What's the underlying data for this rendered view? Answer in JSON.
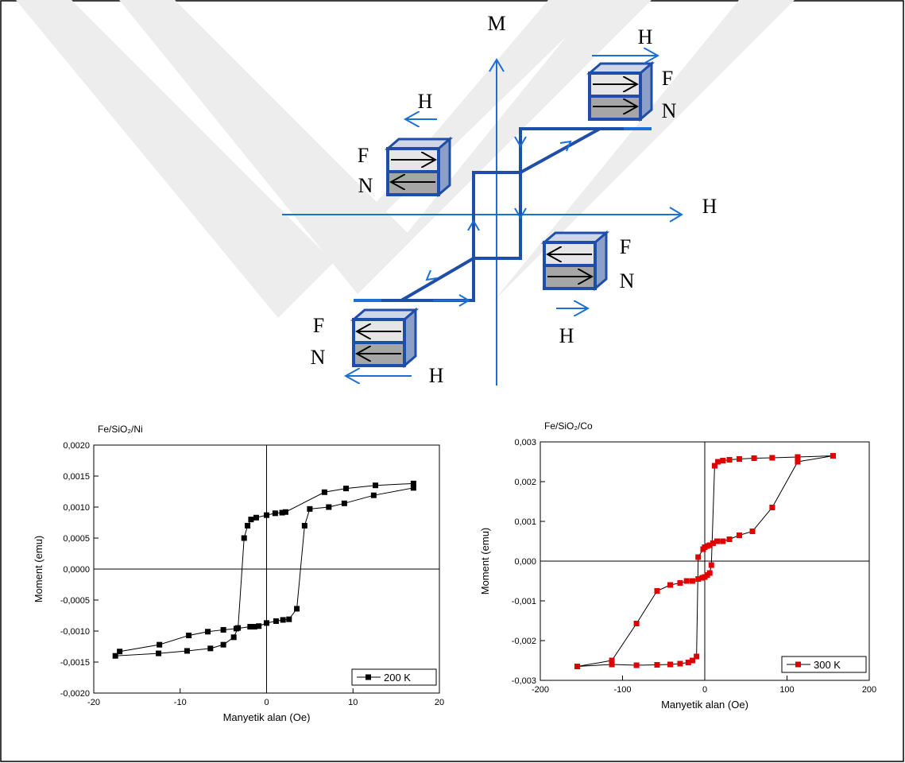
{
  "diagram": {
    "axis_vertical": "M",
    "axis_horizontal": "H",
    "states": [
      {
        "field": "H",
        "top_layer": "F",
        "bottom_layer": "N"
      },
      {
        "field": "H",
        "top_layer": "F",
        "bottom_layer": "N"
      },
      {
        "field": "H",
        "top_layer": "F",
        "bottom_layer": "N"
      },
      {
        "field": "H",
        "top_layer": "F",
        "bottom_layer": "N"
      }
    ]
  },
  "chart_data": [
    {
      "type": "line",
      "title": "Fe/SiO₂/Ni",
      "x_label": "Manyetik alan (Oe)",
      "y_label": "Moment (emu)",
      "xlim": [
        -20,
        20
      ],
      "xticks": [
        -20,
        -10,
        0,
        10,
        20
      ],
      "ylim": [
        -0.002,
        0.002
      ],
      "yticks": [
        {
          "value": -0.002,
          "label": "-0,0020"
        },
        {
          "value": -0.0015,
          "label": "-0,0015"
        },
        {
          "value": -0.001,
          "label": "-0,0010"
        },
        {
          "value": -0.0005,
          "label": "-0,0005"
        },
        {
          "value": 0,
          "label": "0,0000"
        },
        {
          "value": 0.0005,
          "label": "0,0005"
        },
        {
          "value": 0.001,
          "label": "0,0010"
        },
        {
          "value": 0.0015,
          "label": "0,0015"
        },
        {
          "value": 0.002,
          "label": "0,0020"
        }
      ],
      "zero_lines": true,
      "legend": "lower right",
      "x": [
        17.0,
        12.6,
        9.2,
        6.7,
        2.2,
        1.8,
        1.0,
        0,
        -1.2,
        -1.8,
        -2.2,
        -2.6,
        -3.3,
        -3.8,
        -5.0,
        -6.5,
        -9.2,
        -12.5,
        -17.5,
        -17.0,
        -12.4,
        -9.0,
        -6.8,
        -5.0,
        -3.5,
        -1.9,
        -1.4,
        -0.9,
        0,
        1.1,
        1.9,
        2.6,
        3.5,
        4.4,
        5.0,
        7.2,
        9.0,
        12.4,
        17.0
      ],
      "series": [
        {
          "name": "200 K",
          "color": "#000000",
          "values": [
            0.00138,
            0.00135,
            0.0013,
            0.00124,
            0.00092,
            0.00091,
            0.0009,
            0.00087,
            0.00083,
            0.0008,
            0.0007,
            0.0005,
            -0.00095,
            -0.0011,
            -0.00122,
            -0.00128,
            -0.00132,
            -0.00136,
            -0.0014,
            -0.00133,
            -0.00122,
            -0.00107,
            -0.00101,
            -0.00098,
            -0.00096,
            -0.00093,
            -0.00093,
            -0.00092,
            -0.00087,
            -0.00084,
            -0.00082,
            -0.00081,
            -0.00064,
            0.0007,
            0.00097,
            0.001,
            0.00106,
            0.00119,
            0.00131
          ]
        }
      ]
    },
    {
      "type": "line",
      "title": "Fe/SiO₂/Co",
      "x_label": "Manyetik alan (Oe)",
      "y_label": "Moment (emu)",
      "xlim": [
        -200,
        200
      ],
      "xticks": [
        -200,
        -100,
        0,
        100,
        200
      ],
      "ylim": [
        -0.003,
        0.003
      ],
      "yticks": [
        {
          "value": -0.003,
          "label": "-0,003"
        },
        {
          "value": -0.002,
          "label": "-0,002"
        },
        {
          "value": -0.001,
          "label": "-0,001"
        },
        {
          "value": 0,
          "label": "0,000"
        },
        {
          "value": 0.001,
          "label": "0,001"
        },
        {
          "value": 0.002,
          "label": "0,002"
        },
        {
          "value": 0.003,
          "label": "0,003"
        }
      ],
      "zero_lines": true,
      "legend": "lower right",
      "x": [
        156,
        113,
        82,
        60,
        42,
        30,
        22,
        16,
        12,
        8,
        6,
        3,
        0,
        -3,
        -8,
        -15,
        -22,
        -30,
        -42,
        -58,
        -83,
        -113,
        -155,
        -155,
        -113,
        -83,
        -58,
        -42,
        -30,
        -20,
        -15,
        -10,
        -8,
        -2,
        0,
        3,
        6,
        10,
        15,
        22,
        30,
        42,
        58,
        82,
        113,
        156
      ],
      "series": [
        {
          "name": "300 K",
          "color": "#e00000",
          "values": [
            0.00265,
            0.00262,
            0.0026,
            0.00259,
            0.00257,
            0.00255,
            0.00253,
            0.0025,
            0.0024,
            -0.0001,
            -0.0003,
            -0.00035,
            -0.0004,
            -0.00042,
            -0.00045,
            -0.0005,
            -0.0005,
            -0.00055,
            -0.0006,
            -0.00075,
            -0.00157,
            -0.0025,
            -0.00265,
            -0.00265,
            -0.0026,
            -0.00262,
            -0.00261,
            -0.0026,
            -0.00258,
            -0.00255,
            -0.0025,
            -0.0024,
            0.0001,
            0.0003,
            0.00035,
            0.00038,
            0.0004,
            0.00045,
            0.0005,
            0.0005,
            0.00055,
            0.00065,
            0.00075,
            0.00135,
            0.0025,
            0.00265
          ]
        }
      ]
    }
  ]
}
